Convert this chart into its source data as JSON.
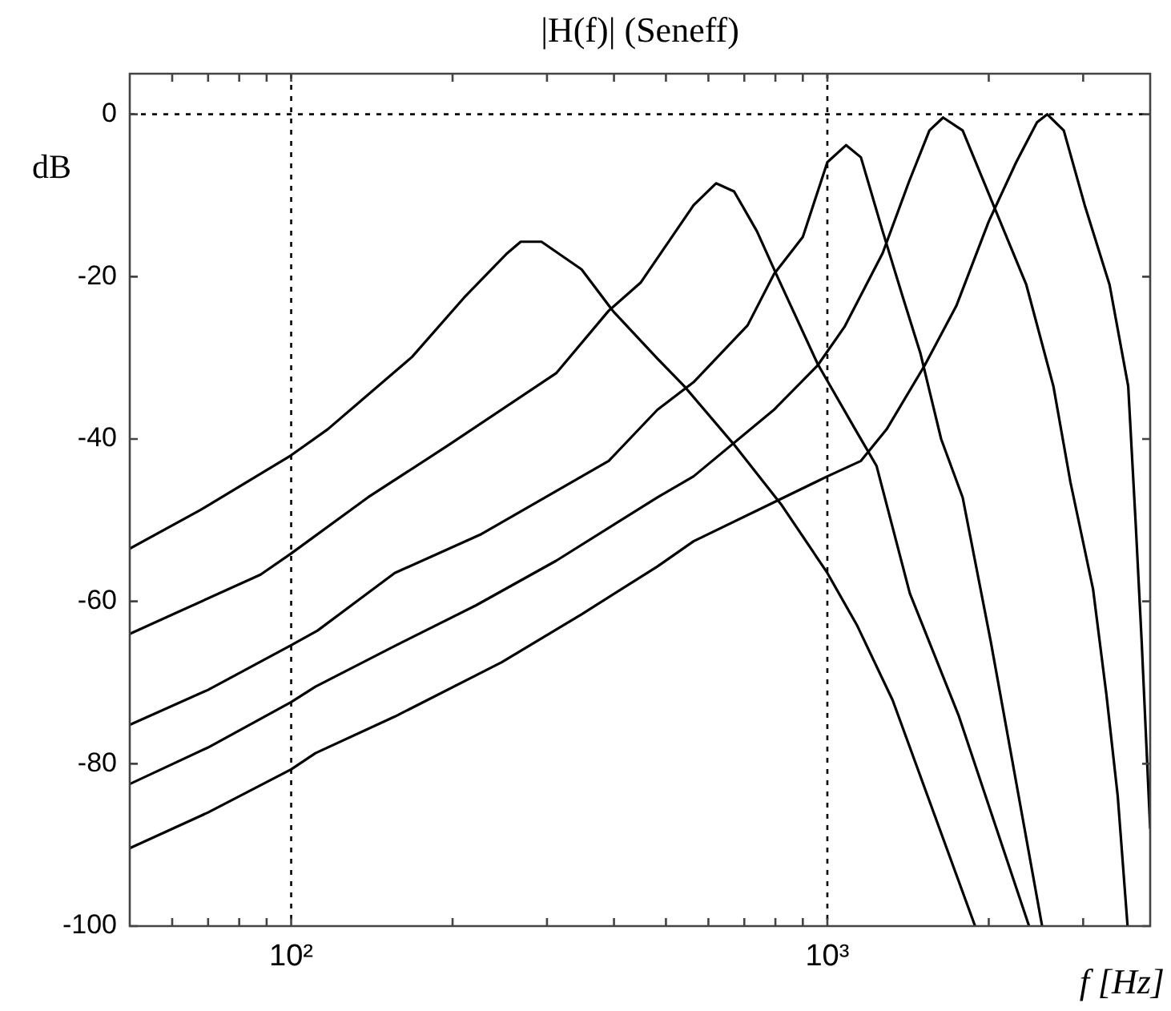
{
  "chart_data": {
    "type": "line",
    "title": "|H(f)| (Seneff)",
    "xlabel": "f [Hz]",
    "ylabel": "dB",
    "log": "x",
    "xlim": [
      50,
      4000
    ],
    "ylim": [
      -100,
      5
    ],
    "xticks": [
      {
        "value": 60,
        "label": null
      },
      {
        "value": 70,
        "label": null
      },
      {
        "value": 80,
        "label": null
      },
      {
        "value": 90,
        "label": null
      },
      {
        "value": 100,
        "label": "10²"
      },
      {
        "value": 200,
        "label": null
      },
      {
        "value": 300,
        "label": null
      },
      {
        "value": 400,
        "label": null
      },
      {
        "value": 500,
        "label": null
      },
      {
        "value": 600,
        "label": null
      },
      {
        "value": 700,
        "label": null
      },
      {
        "value": 800,
        "label": null
      },
      {
        "value": 900,
        "label": null
      },
      {
        "value": 1000,
        "label": "10³"
      },
      {
        "value": 2000,
        "label": null
      },
      {
        "value": 3000,
        "label": null
      }
    ],
    "yticks": [
      -100,
      -80,
      -60,
      -40,
      -20,
      0
    ],
    "marker": "none",
    "line_style": "solid",
    "legend": false,
    "ref_lines": [
      {
        "axis": "x",
        "value": 100,
        "line_style": "dotted",
        "color": "#000000"
      },
      {
        "axis": "x",
        "value": 1000,
        "line_style": "dotted",
        "color": "#000000"
      },
      {
        "axis": "y",
        "value": 0,
        "line_style": "dotted",
        "color": "#000000"
      }
    ],
    "series": [
      {
        "color": "#000000",
        "x": [
          50,
          67.5,
          100,
          117,
          168,
          210,
          253,
          268,
          293,
          348,
          399,
          482,
          541,
          670,
          823,
          1000,
          1137,
          1324,
          1886
        ],
        "values": [
          -53.5,
          -48.8,
          -42,
          -38.8,
          -29.9,
          -22.6,
          -17.1,
          -15.7,
          -15.7,
          -19.1,
          -24.3,
          -30.1,
          -33.5,
          -40.7,
          -48.2,
          -56.5,
          -63,
          -72.2,
          -100
        ]
      },
      {
        "color": "#000000",
        "x": [
          50,
          87.7,
          100,
          139,
          197,
          312,
          391,
          449,
          563,
          620,
          670,
          739,
          807,
          960,
          1127,
          1235,
          1425,
          1756,
          2378
        ],
        "values": [
          -64,
          -56.7,
          -54.1,
          -47.2,
          -40.7,
          -31.9,
          -24.2,
          -20.7,
          -11.2,
          -8.5,
          -9.5,
          -14.4,
          -20,
          -30.8,
          -38.8,
          -43.3,
          -59,
          -74,
          -100
        ]
      },
      {
        "color": "#000000",
        "x": [
          50,
          70,
          100,
          112,
          156,
          225,
          391,
          482,
          563,
          710,
          795,
          900,
          1000,
          1084,
          1155,
          1268,
          1384,
          1492,
          1630,
          1788,
          2018,
          2515
        ],
        "values": [
          -75.2,
          -70.9,
          -65.4,
          -63.6,
          -56.5,
          -51.8,
          -42.7,
          -36.4,
          -33,
          -26,
          -19.7,
          -15.1,
          -5.9,
          -3.8,
          -5.3,
          -14.4,
          -22.6,
          -29.5,
          -40,
          -47.2,
          -65,
          -100
        ]
      },
      {
        "color": "#000000",
        "x": [
          50,
          70,
          100,
          111,
          156,
          221,
          312,
          482,
          563,
          795,
          960,
          1076,
          1268,
          1420,
          1550,
          1644,
          1788,
          2000,
          2350,
          2640,
          2840,
          3130,
          3315,
          3480,
          3630
        ],
        "values": [
          -82.5,
          -78,
          -72.4,
          -70.5,
          -65.5,
          -60.5,
          -55,
          -47.2,
          -44.6,
          -36.4,
          -30.9,
          -26.2,
          -17.1,
          -8.3,
          -2,
          -0.4,
          -2,
          -9.8,
          -21,
          -33.5,
          -45.3,
          -58.5,
          -71.5,
          -84,
          -100
        ]
      },
      {
        "color": "#000000",
        "x": [
          50,
          70,
          100,
          111,
          156,
          247,
          348,
          482,
          563,
          795,
          1000,
          1155,
          1290,
          1520,
          1740,
          2000,
          2250,
          2460,
          2570,
          2760,
          3020,
          3360,
          3640,
          3760,
          3857,
          4000
        ],
        "values": [
          -90.4,
          -86,
          -80.7,
          -78.7,
          -74.2,
          -67.5,
          -61.6,
          -55.7,
          -52.6,
          -47.8,
          -44.6,
          -42.7,
          -38.8,
          -30.9,
          -23.6,
          -13.2,
          -5.9,
          -1,
          0,
          -2,
          -11.2,
          -21,
          -33.5,
          -50.6,
          -65,
          -88
        ]
      }
    ]
  }
}
